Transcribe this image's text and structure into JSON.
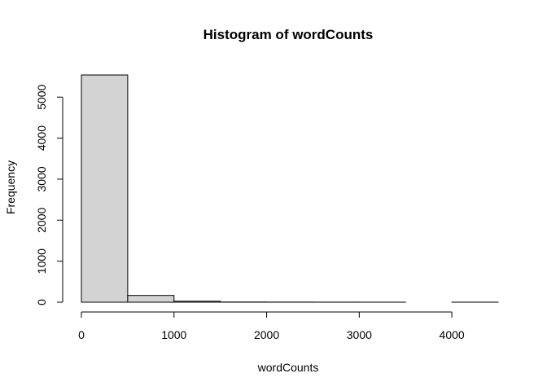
{
  "chart_data": {
    "type": "bar",
    "title": "Histogram of wordCounts",
    "xlabel": "wordCounts",
    "ylabel": "Frequency",
    "xlim": [
      0,
      4500
    ],
    "ylim": [
      0,
      5600
    ],
    "x_ticks": [
      0,
      1000,
      2000,
      3000,
      4000
    ],
    "y_ticks": [
      0,
      1000,
      2000,
      3000,
      4000,
      5000
    ],
    "bin_edges": [
      0,
      500,
      1000,
      1500,
      2000,
      2500,
      3000,
      3500,
      4000,
      4500
    ],
    "values": [
      5540,
      165,
      25,
      5,
      3,
      2,
      1,
      0,
      1
    ]
  }
}
